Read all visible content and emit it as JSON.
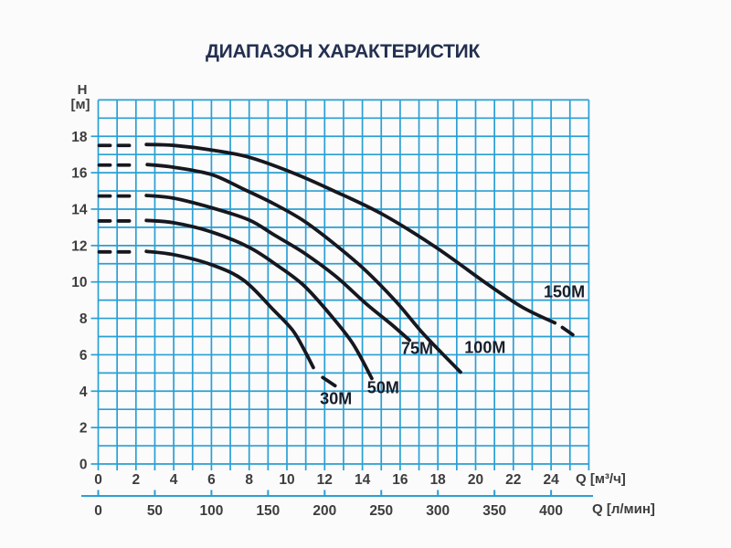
{
  "colors": {
    "grid": "#2a9fd4",
    "curve": "#17171f",
    "title": "#233050",
    "tick_text": "#3d3d3d",
    "curve_label_text": "#171d2b",
    "background": "#fbfbfb"
  },
  "labels": {
    "h_symbol": "H",
    "h_unit": "[м]",
    "q_primary": "Q [м³/ч]",
    "q_secondary": "Q [л/мин]"
  },
  "chart_data": {
    "type": "line",
    "title": "ДИАПАЗОН ХАРАКТЕРИСТИК",
    "grid": "on",
    "x_axis_primary": {
      "label": "Q [м³/ч]",
      "ticks": [
        0,
        2,
        4,
        6,
        8,
        10,
        12,
        14,
        16,
        18,
        20,
        22,
        24
      ],
      "minor_step": 1,
      "range": [
        0,
        26
      ]
    },
    "x_axis_secondary": {
      "label": "Q [л/мин]",
      "ticks": [
        0,
        50,
        100,
        150,
        200,
        250,
        300,
        350,
        400
      ],
      "conversion": "1 м³/ч = 16.667 л/мин"
    },
    "y_axis": {
      "label": "H [м]",
      "ticks": [
        0,
        2,
        4,
        6,
        8,
        10,
        12,
        14,
        16,
        18
      ],
      "minor_step": 1,
      "range": [
        0,
        20
      ]
    },
    "series": [
      {
        "name": "30M",
        "shutoff_head_m": 11.65,
        "dash_start": [
          [
            0.05,
            11.65
          ],
          [
            1.95,
            11.65
          ]
        ],
        "points": [
          [
            2.55,
            11.68
          ],
          [
            4,
            11.5
          ],
          [
            6,
            10.95
          ],
          [
            7.7,
            10.1
          ],
          [
            9.3,
            8.45
          ],
          [
            10.3,
            7.35
          ],
          [
            10.9,
            6.3
          ],
          [
            11.4,
            5.3
          ]
        ],
        "end_dash": [
          [
            11.9,
            4.75
          ],
          [
            12.55,
            4.3
          ]
        ],
        "label_pos": {
          "q": 12.6,
          "h": 3.55
        }
      },
      {
        "name": "50M",
        "shutoff_head_m": 13.35,
        "dash_start": [
          [
            0.05,
            13.35
          ],
          [
            1.95,
            13.35
          ]
        ],
        "points": [
          [
            2.55,
            13.38
          ],
          [
            4,
            13.25
          ],
          [
            6,
            12.75
          ],
          [
            8,
            11.9
          ],
          [
            9.5,
            10.9
          ],
          [
            10.9,
            9.8
          ],
          [
            12.3,
            8.2
          ],
          [
            13.5,
            6.6
          ],
          [
            14.5,
            4.7
          ]
        ],
        "end_dash": null,
        "label_pos": {
          "q": 15.1,
          "h": 4.15
        }
      },
      {
        "name": "75M",
        "shutoff_head_m": 14.7,
        "dash_start": [
          [
            0.05,
            14.72
          ],
          [
            1.95,
            14.72
          ]
        ],
        "points": [
          [
            2.55,
            14.75
          ],
          [
            4,
            14.6
          ],
          [
            6.1,
            14.05
          ],
          [
            8,
            13.4
          ],
          [
            9.3,
            12.6
          ],
          [
            10.9,
            11.6
          ],
          [
            12.6,
            10.3
          ],
          [
            14.2,
            8.8
          ],
          [
            15.5,
            7.7
          ],
          [
            16.5,
            6.8
          ]
        ],
        "end_dash": null,
        "label_pos": {
          "q": 16.9,
          "h": 6.3
        }
      },
      {
        "name": "100M",
        "shutoff_head_m": 16.4,
        "dash_start": [
          [
            0.05,
            16.42
          ],
          [
            1.95,
            16.42
          ]
        ],
        "points": [
          [
            2.6,
            16.45
          ],
          [
            4,
            16.3
          ],
          [
            6,
            15.9
          ],
          [
            7.7,
            15.1
          ],
          [
            9.3,
            14.3
          ],
          [
            10.9,
            13.35
          ],
          [
            12.5,
            12.1
          ],
          [
            14.2,
            10.6
          ],
          [
            15.8,
            8.9
          ],
          [
            17.1,
            7.3
          ],
          [
            18.2,
            6.1
          ],
          [
            19.2,
            5.05
          ]
        ],
        "end_dash": null,
        "label_pos": {
          "q": 20.5,
          "h": 6.35
        }
      },
      {
        "name": "150M",
        "shutoff_head_m": 17.5,
        "dash_start": [
          [
            0.05,
            17.5
          ],
          [
            1.95,
            17.5
          ]
        ],
        "points": [
          [
            2.55,
            17.55
          ],
          [
            4,
            17.5
          ],
          [
            6,
            17.25
          ],
          [
            8,
            16.85
          ],
          [
            10.3,
            16.0
          ],
          [
            12.5,
            15.0
          ],
          [
            15.1,
            13.7
          ],
          [
            17.9,
            11.9
          ],
          [
            20.6,
            9.9
          ],
          [
            22.5,
            8.6
          ],
          [
            24.2,
            7.75
          ]
        ],
        "end_dash": [
          [
            24.6,
            7.5
          ],
          [
            25.15,
            7.1
          ]
        ],
        "label_pos": {
          "q": 24.7,
          "h": 9.45
        }
      }
    ]
  }
}
